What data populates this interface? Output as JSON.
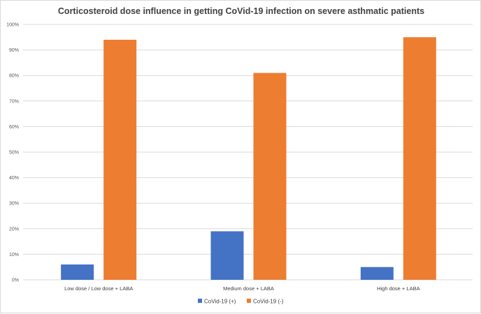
{
  "chart_data": {
    "type": "bar",
    "title": "Corticosteroid dose influence in getting CoVid-19 infection on severe asthmatic patients",
    "categories": [
      "Low dose / Low dose + LABA",
      "Medium dose + LABA",
      "High dose + LABA"
    ],
    "series": [
      {
        "name": "CoVid-19 (+)",
        "values": [
          6,
          19,
          5
        ],
        "color": "#4472c4"
      },
      {
        "name": "CoVid-19 (-)",
        "values": [
          94,
          81,
          95
        ],
        "color": "#ed7d31"
      }
    ],
    "xlabel": "",
    "ylabel": "",
    "ylim": [
      0,
      100
    ],
    "yticks": [
      "0%",
      "10%",
      "20%",
      "30%",
      "40%",
      "50%",
      "60%",
      "70%",
      "80%",
      "90%",
      "100%"
    ],
    "grid": true,
    "legend": "bottom"
  }
}
